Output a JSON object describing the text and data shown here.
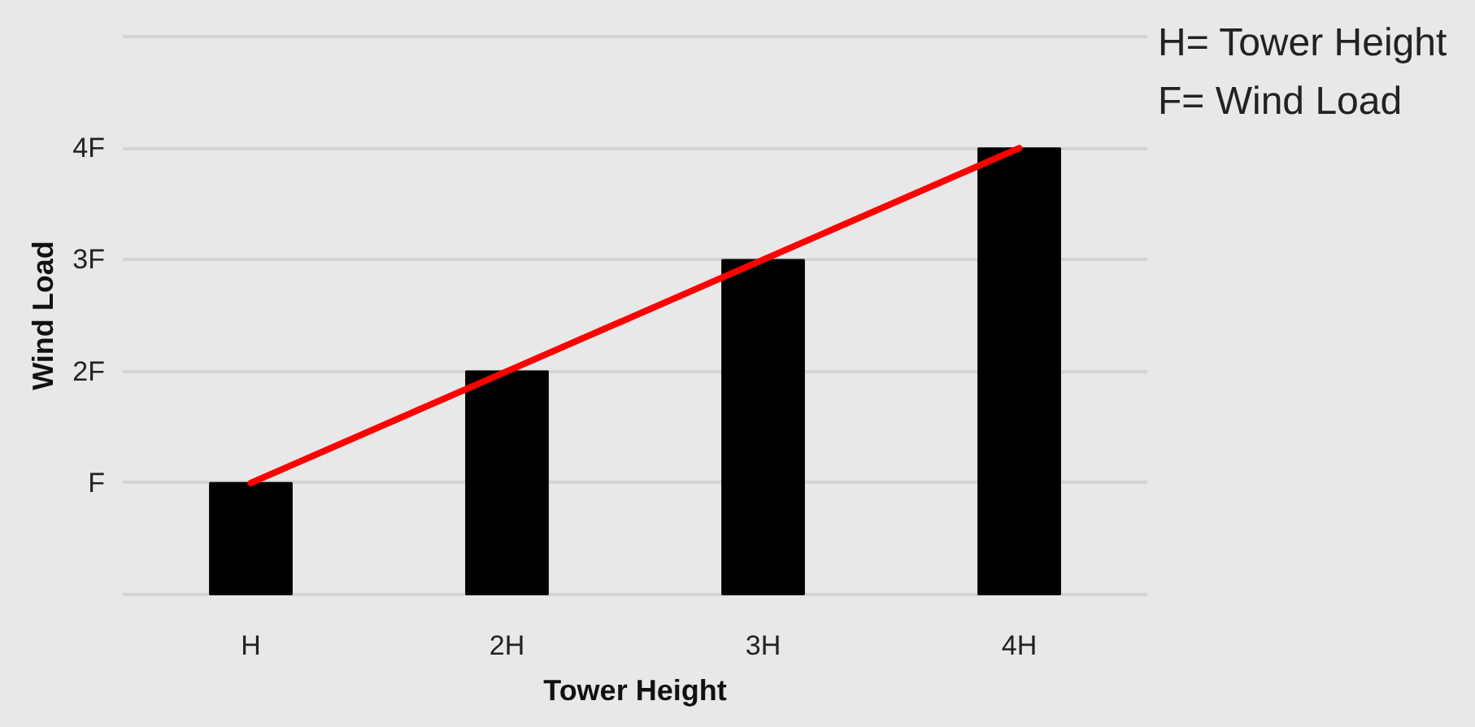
{
  "chart_data": {
    "type": "bar",
    "xlabel": "Tower Height",
    "ylabel": "Wind Load",
    "categories": [
      "H",
      "2H",
      "3H",
      "4H"
    ],
    "series": [
      {
        "type": "bar",
        "color": "#000000",
        "values": [
          1,
          2,
          3,
          4
        ]
      },
      {
        "type": "line",
        "color": "#ff0000",
        "values": [
          1,
          2,
          3,
          4
        ]
      }
    ],
    "ylim": [
      0,
      5
    ],
    "yticks": [
      {
        "value": 0,
        "label": null
      },
      {
        "value": 1,
        "label": "F"
      },
      {
        "value": 2,
        "label": "2F"
      },
      {
        "value": 3,
        "label": "3F"
      },
      {
        "value": 4,
        "label": "4F"
      },
      {
        "value": 5,
        "label": null
      }
    ],
    "grid": "y",
    "annotations": [
      "H= Tower Height",
      "F= Wind Load"
    ]
  }
}
